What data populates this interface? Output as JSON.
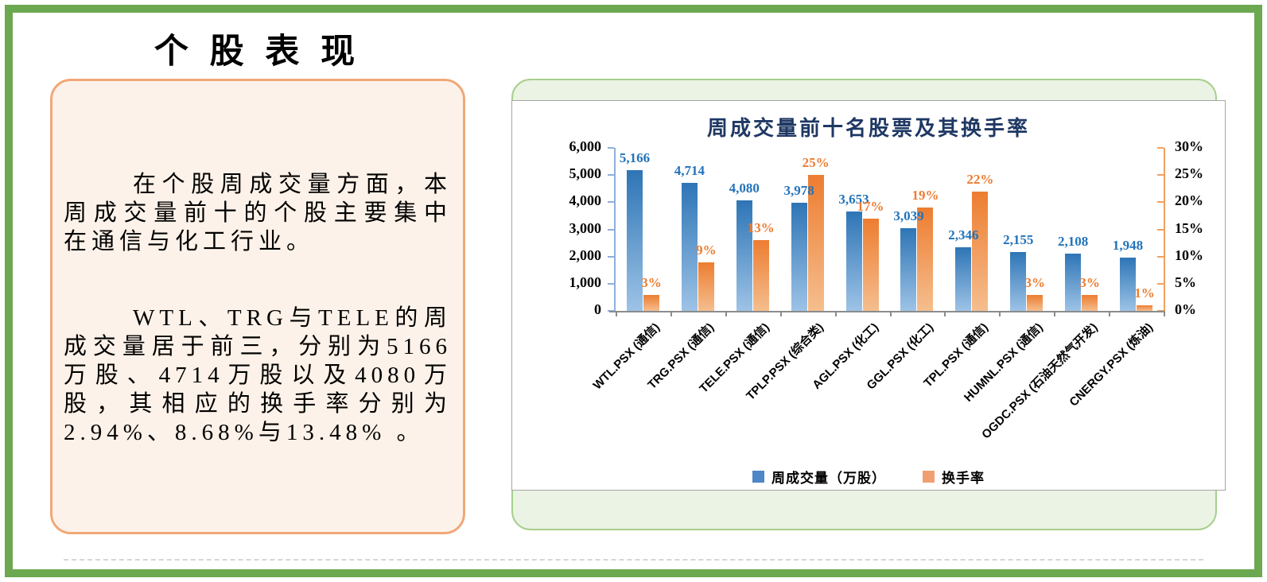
{
  "slide": {
    "title": "个 股 表 现",
    "frame_color": "#6CA850",
    "commentary": {
      "paragraph1": "在个股周成交量方面，本周成交量前十的个股主要集中在通信与化工行业。",
      "paragraph2": "WTL、TRG与TELE的周成交量居于前三，分别为5166万股、4714万股以及4080万股，其相应的换手率分别为2.94%、8.68%与13.48% 。",
      "box_border_color": "#F0A878",
      "box_background": "#FDF2E9"
    },
    "chart_panel": {
      "border_color": "#A6CF8D",
      "background": "#EBF3E4"
    }
  },
  "chart_data": {
    "type": "bar",
    "title": "周成交量前十名股票及其换手率",
    "title_color": "#1F3864",
    "grid": false,
    "legend_position": "bottom",
    "categories": [
      "WTL.PSX (通信)",
      "TRG.PSX (通信)",
      "TELE.PSX (通信)",
      "TPLP.PSX (综合类)",
      "AGL.PSX (化工)",
      "GGL.PSX (化工)",
      "TPL.PSX (通信)",
      "HUMNL.PSX (通信)",
      "OGDC.PSX (石油天然气开发)",
      "CNERGY.PSX (炼油)"
    ],
    "series": [
      {
        "name": "周成交量（万股）",
        "axis": "left",
        "values": [
          5166,
          4714,
          4080,
          3978,
          3653,
          3039,
          2346,
          2155,
          2108,
          1948
        ],
        "labels": [
          "5,166",
          "4,714",
          "4,080",
          "3,978",
          "3,653",
          "3,039",
          "2,346",
          "2,155",
          "2,108",
          "1,948"
        ],
        "bar_color_top": "#2E75B6",
        "bar_color_bottom": "#9DC3E6",
        "label_color": "#2273BA",
        "legend_color": "#4E86C6"
      },
      {
        "name": "换手率",
        "axis": "right",
        "values": [
          3,
          9,
          13,
          25,
          17,
          19,
          22,
          3,
          3,
          1
        ],
        "labels": [
          "3%",
          "9%",
          "13%",
          "25%",
          "17%",
          "19%",
          "22%",
          "3%",
          "3%",
          "1%"
        ],
        "bar_color_top": "#ED7D31",
        "bar_color_bottom": "#F5BE8E",
        "label_color": "#ED7D31",
        "legend_color": "#F0A070"
      }
    ],
    "left_axis": {
      "min": 0,
      "max": 6000,
      "tick_labels": [
        "6,000",
        "5,000",
        "4,000",
        "3,000",
        "2,000",
        "1,000",
        "0"
      ],
      "line_color": "#8FAFDC"
    },
    "right_axis": {
      "min": 0,
      "max": 30,
      "tick_labels": [
        "30%",
        "25%",
        "20%",
        "15%",
        "10%",
        "5%",
        "0%"
      ],
      "line_color": "#F1A060"
    },
    "x_axis": {
      "line_color": "#8C8C8C"
    }
  }
}
